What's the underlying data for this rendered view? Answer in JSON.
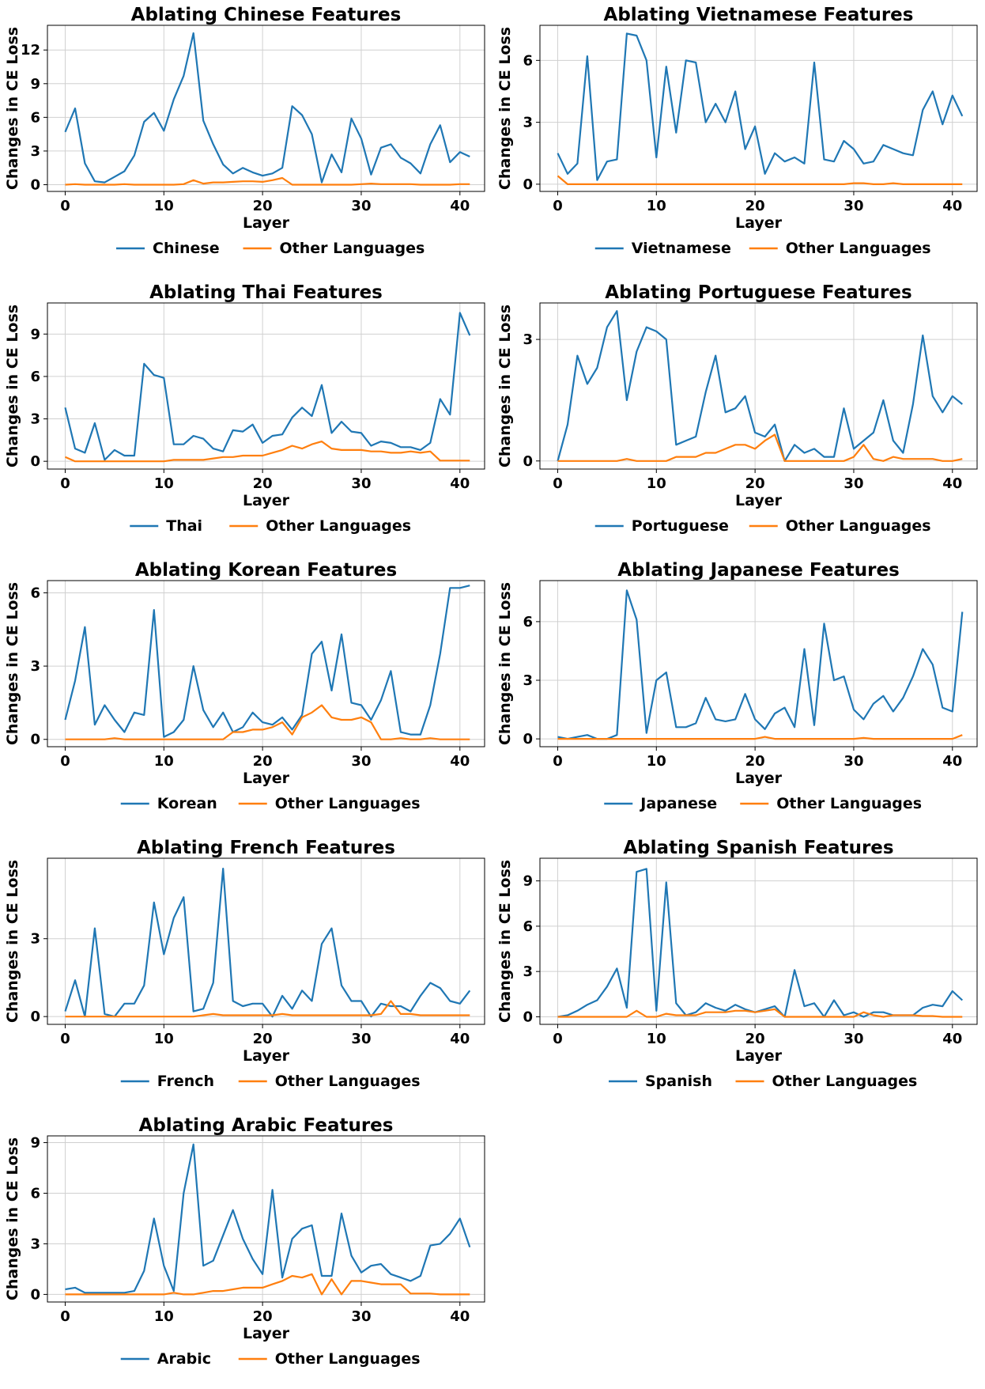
{
  "colors": {
    "primary": "#1f77b4",
    "other": "#ff7f0e",
    "grid": "#d0d0d0",
    "axis": "#000000"
  },
  "chart_data": [
    {
      "type": "line",
      "title": "Ablating Chinese Features",
      "xlabel": "Layer",
      "ylabel": "Changes in CE Loss",
      "xticks": [
        0,
        10,
        20,
        30,
        40
      ],
      "yticks": [
        0,
        3,
        6,
        9,
        12
      ],
      "xlim": [
        -1.8,
        42.5
      ],
      "ylim": [
        -0.6,
        14.2
      ],
      "grid": true,
      "legend": "below",
      "series": [
        {
          "name": "Chinese",
          "values": [
            4.7,
            6.8,
            1.9,
            0.3,
            0.2,
            0.7,
            1.2,
            2.6,
            5.6,
            6.4,
            4.8,
            7.6,
            9.7,
            13.5,
            5.7,
            3.6,
            1.8,
            1.0,
            1.5,
            1.1,
            0.8,
            1.0,
            1.5,
            7.0,
            6.2,
            4.5,
            0.2,
            2.7,
            1.1,
            5.9,
            4.1,
            0.9,
            3.3,
            3.6,
            2.4,
            1.9,
            1.0,
            3.6,
            5.3,
            2.0,
            2.9,
            2.5
          ]
        },
        {
          "name": "Other Languages",
          "values": [
            0.0,
            0.05,
            0.0,
            0.0,
            0.0,
            0.0,
            0.05,
            0.0,
            0.0,
            0.0,
            0.0,
            0.0,
            0.05,
            0.4,
            0.1,
            0.2,
            0.2,
            0.25,
            0.3,
            0.3,
            0.25,
            0.4,
            0.6,
            0.0,
            0.0,
            0.0,
            0.0,
            0.0,
            0.0,
            0.0,
            0.05,
            0.1,
            0.05,
            0.05,
            0.05,
            0.05,
            0.0,
            0.0,
            0.0,
            0.0,
            0.05,
            0.05
          ]
        }
      ]
    },
    {
      "type": "line",
      "title": "Ablating Vietnamese Features",
      "xlabel": "Layer",
      "ylabel": "Changes in CE Loss",
      "xticks": [
        0,
        10,
        20,
        30,
        40
      ],
      "yticks": [
        0,
        3,
        6
      ],
      "xlim": [
        -1.8,
        42.5
      ],
      "ylim": [
        -0.35,
        7.7
      ],
      "grid": true,
      "legend": "below",
      "series": [
        {
          "name": "Vietnamese",
          "values": [
            1.5,
            0.5,
            1.0,
            6.2,
            0.2,
            1.1,
            1.2,
            7.3,
            7.2,
            6.0,
            1.3,
            5.7,
            2.5,
            6.0,
            5.9,
            3.0,
            3.9,
            3.0,
            4.5,
            1.7,
            2.8,
            0.5,
            1.5,
            1.1,
            1.3,
            1.0,
            5.9,
            1.2,
            1.1,
            2.1,
            1.7,
            1.0,
            1.1,
            1.9,
            1.7,
            1.5,
            1.4,
            3.6,
            4.5,
            2.9,
            4.3,
            3.3
          ]
        },
        {
          "name": "Other Languages",
          "values": [
            0.4,
            0.0,
            0.0,
            0.0,
            0.0,
            0.0,
            0.0,
            0.0,
            0.0,
            0.0,
            0.0,
            0.0,
            0.0,
            0.0,
            0.0,
            0.0,
            0.0,
            0.0,
            0.0,
            0.0,
            0.0,
            0.0,
            0.0,
            0.0,
            0.0,
            0.0,
            0.0,
            0.0,
            0.0,
            0.0,
            0.05,
            0.05,
            0.0,
            0.0,
            0.05,
            0.0,
            0.0,
            0.0,
            0.0,
            0.0,
            0.0,
            0.0
          ]
        }
      ]
    },
    {
      "type": "line",
      "title": "Ablating Thai Features",
      "xlabel": "Layer",
      "ylabel": "Changes in CE Loss",
      "xticks": [
        0,
        10,
        20,
        30,
        40
      ],
      "yticks": [
        0,
        3,
        6,
        9
      ],
      "xlim": [
        -1.8,
        42.5
      ],
      "ylim": [
        -0.55,
        11.2
      ],
      "grid": true,
      "legend": "below",
      "series": [
        {
          "name": "Thai",
          "values": [
            3.8,
            0.9,
            0.6,
            2.7,
            0.1,
            0.8,
            0.4,
            0.4,
            6.9,
            6.1,
            5.9,
            1.2,
            1.2,
            1.8,
            1.6,
            0.9,
            0.7,
            2.2,
            2.1,
            2.6,
            1.3,
            1.8,
            1.9,
            3.1,
            3.8,
            3.2,
            5.4,
            2.0,
            2.8,
            2.1,
            2.0,
            1.1,
            1.4,
            1.3,
            1.0,
            1.0,
            0.8,
            1.3,
            4.4,
            3.3,
            10.5,
            8.9
          ]
        },
        {
          "name": "Other Languages",
          "values": [
            0.3,
            0.0,
            0.0,
            0.0,
            0.0,
            0.0,
            0.0,
            0.0,
            0.0,
            0.0,
            0.0,
            0.1,
            0.1,
            0.1,
            0.1,
            0.2,
            0.3,
            0.3,
            0.4,
            0.4,
            0.4,
            0.6,
            0.8,
            1.1,
            0.9,
            1.2,
            1.4,
            0.9,
            0.8,
            0.8,
            0.8,
            0.7,
            0.7,
            0.6,
            0.6,
            0.7,
            0.6,
            0.7,
            0.05,
            0.05,
            0.05,
            0.05
          ]
        }
      ]
    },
    {
      "type": "line",
      "title": "Ablating Portuguese Features",
      "xlabel": "Layer",
      "ylabel": "Changes in CE Loss",
      "xticks": [
        0,
        10,
        20,
        30,
        40
      ],
      "yticks": [
        0,
        3
      ],
      "xlim": [
        -1.8,
        42.5
      ],
      "ylim": [
        -0.2,
        3.9
      ],
      "grid": true,
      "legend": "below",
      "series": [
        {
          "name": "Portuguese",
          "values": [
            0.0,
            0.9,
            2.6,
            1.9,
            2.3,
            3.3,
            3.7,
            1.5,
            2.7,
            3.3,
            3.2,
            3.0,
            0.4,
            0.5,
            0.6,
            1.7,
            2.6,
            1.2,
            1.3,
            1.6,
            0.7,
            0.6,
            0.9,
            0.0,
            0.4,
            0.2,
            0.3,
            0.1,
            0.1,
            1.3,
            0.3,
            0.5,
            0.7,
            1.5,
            0.5,
            0.2,
            1.4,
            3.1,
            1.6,
            1.2,
            1.6,
            1.4
          ]
        },
        {
          "name": "Other Languages",
          "values": [
            0.0,
            0.0,
            0.0,
            0.0,
            0.0,
            0.0,
            0.0,
            0.05,
            0.0,
            0.0,
            0.0,
            0.0,
            0.1,
            0.1,
            0.1,
            0.2,
            0.2,
            0.3,
            0.4,
            0.4,
            0.3,
            0.5,
            0.65,
            0.0,
            0.0,
            0.0,
            0.0,
            0.0,
            0.0,
            0.0,
            0.1,
            0.4,
            0.05,
            0.0,
            0.1,
            0.05,
            0.05,
            0.05,
            0.05,
            0.0,
            0.0,
            0.05
          ]
        }
      ]
    },
    {
      "type": "line",
      "title": "Ablating Korean Features",
      "xlabel": "Layer",
      "ylabel": "Changes in CE Loss",
      "xticks": [
        0,
        10,
        20,
        30,
        40
      ],
      "yticks": [
        0,
        3,
        6
      ],
      "xlim": [
        -1.8,
        42.5
      ],
      "ylim": [
        -0.3,
        6.5
      ],
      "grid": true,
      "legend": "below",
      "series": [
        {
          "name": "Korean",
          "values": [
            0.8,
            2.4,
            4.6,
            0.6,
            1.4,
            0.8,
            0.3,
            1.1,
            1.0,
            5.3,
            0.1,
            0.3,
            0.8,
            3.0,
            1.2,
            0.5,
            1.1,
            0.3,
            0.5,
            1.1,
            0.7,
            0.6,
            0.9,
            0.4,
            1.0,
            3.5,
            4.0,
            2.0,
            4.3,
            1.5,
            1.4,
            0.8,
            1.6,
            2.8,
            0.3,
            0.2,
            0.2,
            1.4,
            3.5,
            6.2,
            6.2,
            6.3
          ]
        },
        {
          "name": "Other Languages",
          "values": [
            0.0,
            0.0,
            0.0,
            0.0,
            0.0,
            0.05,
            0.0,
            0.0,
            0.0,
            0.0,
            0.0,
            0.0,
            0.0,
            0.0,
            0.0,
            0.0,
            0.0,
            0.3,
            0.3,
            0.4,
            0.4,
            0.5,
            0.7,
            0.2,
            0.9,
            1.1,
            1.4,
            0.9,
            0.8,
            0.8,
            0.9,
            0.7,
            0.0,
            0.0,
            0.05,
            0.0,
            0.0,
            0.05,
            0.0,
            0.0,
            0.0,
            0.0
          ]
        }
      ]
    },
    {
      "type": "line",
      "title": "Ablating Japanese Features",
      "xlabel": "Layer",
      "ylabel": "Changes in CE Loss",
      "xticks": [
        0,
        10,
        20,
        30,
        40
      ],
      "yticks": [
        0,
        3,
        6
      ],
      "xlim": [
        -1.8,
        42.5
      ],
      "ylim": [
        -0.4,
        8.1
      ],
      "grid": true,
      "legend": "below",
      "series": [
        {
          "name": "Japanese",
          "values": [
            0.1,
            0.0,
            0.1,
            0.2,
            0.0,
            0.0,
            0.2,
            7.6,
            6.1,
            0.3,
            3.0,
            3.4,
            0.6,
            0.6,
            0.8,
            2.1,
            1.0,
            0.9,
            1.0,
            2.3,
            1.0,
            0.5,
            1.3,
            1.6,
            0.6,
            4.6,
            0.7,
            5.9,
            3.0,
            3.2,
            1.5,
            1.0,
            1.8,
            2.2,
            1.4,
            2.1,
            3.2,
            4.6,
            3.8,
            1.6,
            1.4,
            6.5
          ]
        },
        {
          "name": "Other Languages",
          "values": [
            0.0,
            0.0,
            0.0,
            0.0,
            0.0,
            0.0,
            0.0,
            0.0,
            0.0,
            0.0,
            0.0,
            0.0,
            0.0,
            0.0,
            0.0,
            0.0,
            0.0,
            0.0,
            0.0,
            0.0,
            0.0,
            0.1,
            0.0,
            0.0,
            0.0,
            0.0,
            0.0,
            0.0,
            0.0,
            0.0,
            0.0,
            0.05,
            0.0,
            0.0,
            0.0,
            0.0,
            0.0,
            0.0,
            0.0,
            0.0,
            0.0,
            0.2
          ]
        }
      ]
    },
    {
      "type": "line",
      "title": "Ablating French Features",
      "xlabel": "Layer",
      "ylabel": "Changes in CE Loss",
      "xticks": [
        0,
        10,
        20,
        30,
        40
      ],
      "yticks": [
        0,
        3
      ],
      "xlim": [
        -1.8,
        42.5
      ],
      "ylim": [
        -0.3,
        6.1
      ],
      "grid": true,
      "legend": "below",
      "series": [
        {
          "name": "French",
          "values": [
            0.2,
            1.4,
            0.0,
            3.4,
            0.1,
            0.0,
            0.5,
            0.5,
            1.2,
            4.4,
            2.4,
            3.8,
            4.6,
            0.2,
            0.3,
            1.3,
            5.7,
            0.6,
            0.4,
            0.5,
            0.5,
            0.0,
            0.8,
            0.3,
            1.0,
            0.6,
            2.8,
            3.4,
            1.2,
            0.6,
            0.6,
            0.0,
            0.5,
            0.4,
            0.4,
            0.2,
            0.8,
            1.3,
            1.1,
            0.6,
            0.5,
            1.0
          ]
        },
        {
          "name": "Other Languages",
          "values": [
            0.0,
            0.0,
            0.0,
            0.0,
            0.0,
            0.0,
            0.0,
            0.0,
            0.0,
            0.0,
            0.0,
            0.0,
            0.0,
            0.0,
            0.05,
            0.1,
            0.05,
            0.05,
            0.05,
            0.05,
            0.05,
            0.05,
            0.1,
            0.05,
            0.05,
            0.05,
            0.05,
            0.05,
            0.05,
            0.05,
            0.05,
            0.05,
            0.1,
            0.6,
            0.1,
            0.1,
            0.05,
            0.05,
            0.05,
            0.05,
            0.05,
            0.05
          ]
        }
      ]
    },
    {
      "type": "line",
      "title": "Ablating Spanish Features",
      "xlabel": "Layer",
      "ylabel": "Changes in CE Loss",
      "xticks": [
        0,
        10,
        20,
        30,
        40
      ],
      "yticks": [
        0,
        3,
        6,
        9
      ],
      "xlim": [
        -1.8,
        42.5
      ],
      "ylim": [
        -0.5,
        10.5
      ],
      "grid": true,
      "legend": "below",
      "series": [
        {
          "name": "Spanish",
          "values": [
            0.0,
            0.1,
            0.4,
            0.8,
            1.1,
            2.0,
            3.2,
            0.6,
            9.6,
            9.8,
            0.4,
            8.9,
            0.9,
            0.1,
            0.3,
            0.9,
            0.6,
            0.4,
            0.8,
            0.5,
            0.3,
            0.5,
            0.7,
            0.0,
            3.1,
            0.7,
            0.9,
            0.0,
            1.1,
            0.1,
            0.3,
            0.0,
            0.3,
            0.3,
            0.1,
            0.1,
            0.1,
            0.6,
            0.8,
            0.7,
            1.7,
            1.1
          ]
        },
        {
          "name": "Other Languages",
          "values": [
            0.0,
            0.0,
            0.0,
            0.0,
            0.0,
            0.0,
            0.0,
            0.0,
            0.4,
            0.0,
            0.0,
            0.2,
            0.1,
            0.1,
            0.1,
            0.3,
            0.3,
            0.3,
            0.4,
            0.4,
            0.3,
            0.4,
            0.5,
            0.0,
            0.0,
            0.0,
            0.0,
            0.0,
            0.0,
            0.0,
            0.0,
            0.3,
            0.1,
            0.0,
            0.1,
            0.1,
            0.1,
            0.05,
            0.05,
            0.0,
            0.0,
            0.0
          ]
        }
      ]
    },
    {
      "type": "line",
      "title": "Ablating Arabic Features",
      "xlabel": "Layer",
      "ylabel": "Changes in CE Loss",
      "xticks": [
        0,
        10,
        20,
        30,
        40
      ],
      "yticks": [
        0,
        3,
        6,
        9
      ],
      "xlim": [
        -1.8,
        42.5
      ],
      "ylim": [
        -0.45,
        9.4
      ],
      "grid": true,
      "legend": "below",
      "series": [
        {
          "name": "Arabic",
          "values": [
            0.3,
            0.4,
            0.1,
            0.1,
            0.1,
            0.1,
            0.1,
            0.2,
            1.4,
            4.5,
            1.7,
            0.2,
            6.0,
            8.9,
            1.7,
            2.0,
            3.5,
            5.0,
            3.3,
            2.1,
            1.2,
            6.2,
            1.0,
            3.3,
            3.9,
            4.1,
            1.1,
            1.1,
            4.8,
            2.3,
            1.3,
            1.7,
            1.8,
            1.2,
            1.0,
            0.8,
            1.1,
            2.9,
            3.0,
            3.6,
            4.5,
            2.8
          ]
        },
        {
          "name": "Other Languages",
          "values": [
            0.0,
            0.0,
            0.0,
            0.0,
            0.0,
            0.0,
            0.0,
            0.0,
            0.0,
            0.0,
            0.0,
            0.1,
            0.0,
            0.0,
            0.1,
            0.2,
            0.2,
            0.3,
            0.4,
            0.4,
            0.4,
            0.6,
            0.8,
            1.1,
            1.0,
            1.2,
            0.0,
            0.9,
            0.0,
            0.8,
            0.8,
            0.7,
            0.6,
            0.6,
            0.6,
            0.05,
            0.05,
            0.05,
            0.0,
            0.0,
            0.0,
            0.0
          ]
        }
      ]
    }
  ]
}
